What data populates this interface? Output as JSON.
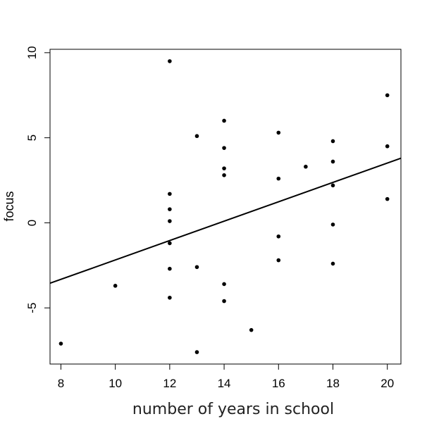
{
  "chart_data": {
    "type": "scatter",
    "title": "",
    "xlabel": "number of years in school",
    "ylabel": "focus",
    "xlim": [
      7.6,
      20.5
    ],
    "ylim": [
      -8.3,
      10.2
    ],
    "x_ticks": [
      8,
      10,
      12,
      14,
      16,
      18,
      20
    ],
    "y_ticks": [
      -5,
      0,
      5,
      10
    ],
    "grid": false,
    "legend": "none",
    "point_color": "#000000",
    "points": [
      {
        "x": 8,
        "y": -7.1
      },
      {
        "x": 10,
        "y": -3.7
      },
      {
        "x": 12,
        "y": 9.5
      },
      {
        "x": 12,
        "y": 1.7
      },
      {
        "x": 12,
        "y": 0.8
      },
      {
        "x": 12,
        "y": 0.1
      },
      {
        "x": 12,
        "y": -1.2
      },
      {
        "x": 12,
        "y": -2.7
      },
      {
        "x": 12,
        "y": -4.4
      },
      {
        "x": 13,
        "y": 5.1
      },
      {
        "x": 13,
        "y": -2.6
      },
      {
        "x": 13,
        "y": -7.6
      },
      {
        "x": 14,
        "y": 6.0
      },
      {
        "x": 14,
        "y": 4.4
      },
      {
        "x": 14,
        "y": 3.2
      },
      {
        "x": 14,
        "y": 2.8
      },
      {
        "x": 14,
        "y": -3.6
      },
      {
        "x": 14,
        "y": -4.6
      },
      {
        "x": 15,
        "y": -6.3
      },
      {
        "x": 16,
        "y": 5.3
      },
      {
        "x": 16,
        "y": 2.6
      },
      {
        "x": 16,
        "y": -0.8
      },
      {
        "x": 16,
        "y": -2.2
      },
      {
        "x": 17,
        "y": 3.3
      },
      {
        "x": 18,
        "y": 4.8
      },
      {
        "x": 18,
        "y": 3.6
      },
      {
        "x": 18,
        "y": 2.2
      },
      {
        "x": 18,
        "y": -0.1
      },
      {
        "x": 18,
        "y": -2.4
      },
      {
        "x": 20,
        "y": 7.5
      },
      {
        "x": 20,
        "y": 4.5
      },
      {
        "x": 20,
        "y": 1.4
      }
    ],
    "regression_line": {
      "x": [
        7.6,
        20.5
      ],
      "y": [
        -3.55,
        3.8
      ]
    }
  }
}
